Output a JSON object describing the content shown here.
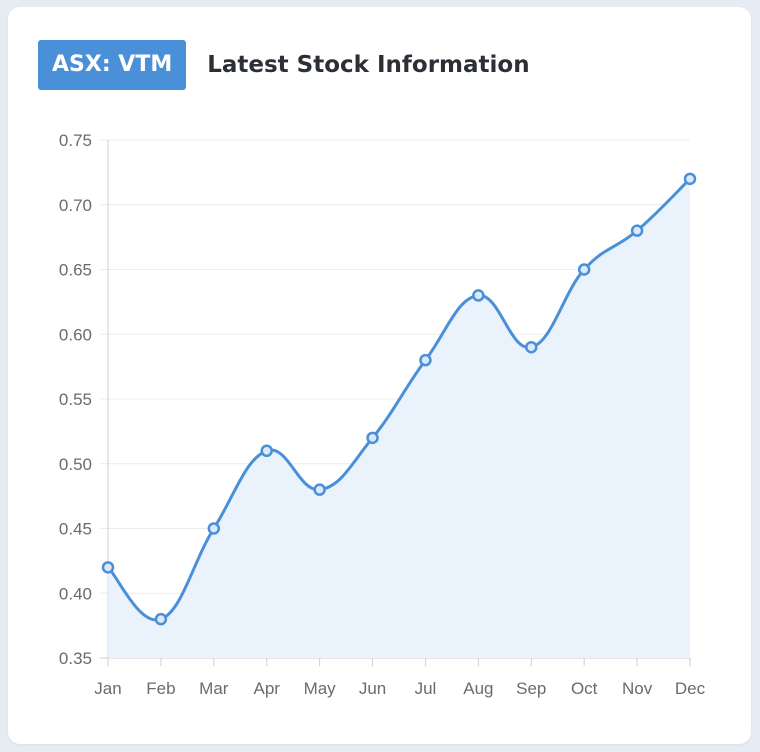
{
  "header": {
    "ticker": "ASX: VTM",
    "title": "Latest Stock Information"
  },
  "colors": {
    "line": "#4a90d9",
    "fill": "#eaf2fc",
    "grid": "#ececec",
    "axis": "#cfcfcf",
    "tick_text": "#6b6b6b"
  },
  "chart_data": {
    "type": "line",
    "title": "",
    "xlabel": "",
    "ylabel": "",
    "categories": [
      "Jan",
      "Feb",
      "Mar",
      "Apr",
      "May",
      "Jun",
      "Jul",
      "Aug",
      "Sep",
      "Oct",
      "Nov",
      "Dec"
    ],
    "series": [
      {
        "values": [
          0.42,
          0.38,
          0.45,
          0.51,
          0.48,
          0.52,
          0.58,
          0.63,
          0.59,
          0.65,
          0.68,
          0.72
        ]
      }
    ],
    "ylim": [
      0.35,
      0.75
    ],
    "yticks": [
      "0.35",
      "0.40",
      "0.45",
      "0.50",
      "0.55",
      "0.60",
      "0.65",
      "0.70",
      "0.75"
    ],
    "grid": true,
    "area_fill": true,
    "smooth": true,
    "legend": "none"
  }
}
